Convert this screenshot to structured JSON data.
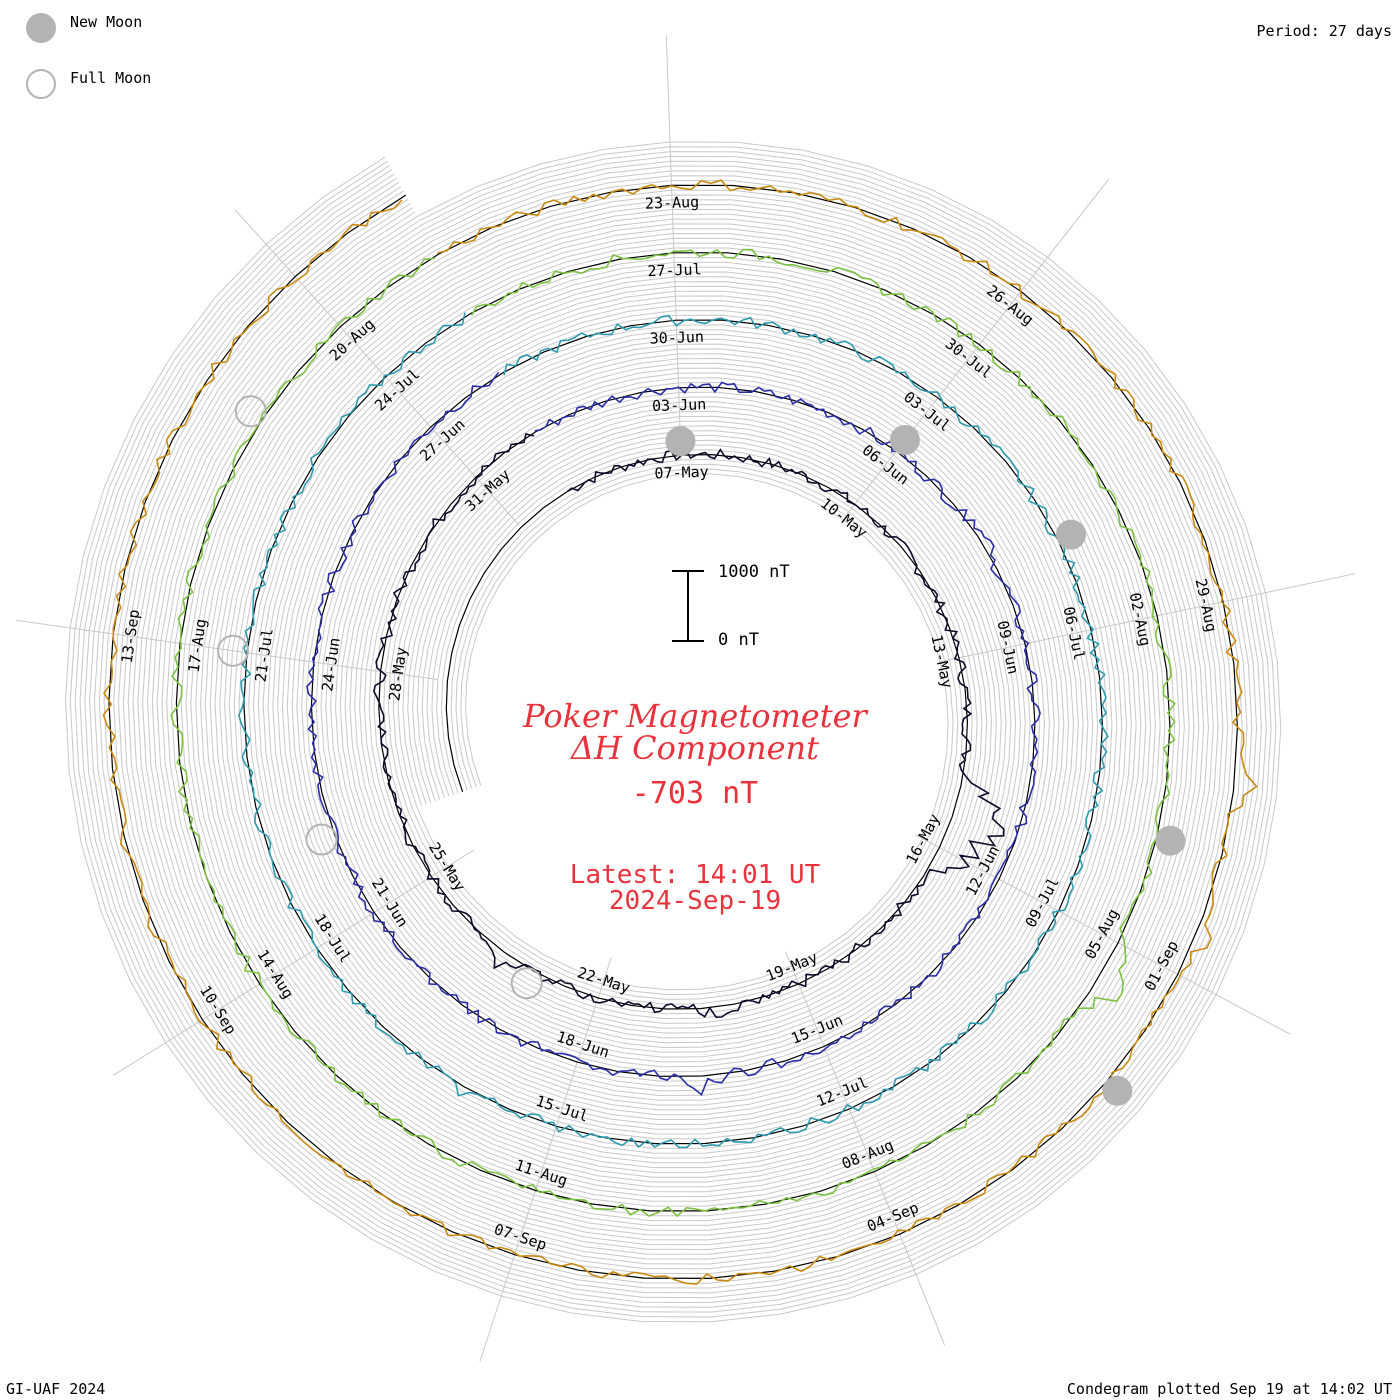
{
  "legend": {
    "new_moon_label": "New Moon",
    "full_moon_label": "Full Moon",
    "new_moon_color": "#b3b3b3",
    "full_moon_color": "#b3b3b3"
  },
  "period_label": "Period: 27 days",
  "footer": {
    "left": "GI-UAF 2024",
    "right": "Condegram plotted Sep 19 at 14:02 UT"
  },
  "title": {
    "line1": "Poker Magnetometer",
    "line2": "ΔH Component",
    "current_value": "-703 nT",
    "latest_time": "Latest: 14:01 UT",
    "latest_date": "2024-Sep-19",
    "color": "#e8323c"
  },
  "scale_bar": {
    "top_label": "1000 nT",
    "bottom_label": "0 nT"
  },
  "chart_data": {
    "type": "line",
    "subtype": "polar-spiral condegram",
    "period_days": 27,
    "units": "nT",
    "date_labels": [
      "07-May",
      "10-May",
      "13-May",
      "16-May",
      "19-May",
      "22-May",
      "25-May",
      "28-May",
      "31-May",
      "03-Jun",
      "06-Jun",
      "09-Jun",
      "12-Jun",
      "15-Jun",
      "18-Jun",
      "21-Jun",
      "24-Jun",
      "27-Jun",
      "30-Jun",
      "03-Jul",
      "06-Jul",
      "09-Jul",
      "12-Jul",
      "15-Jul",
      "18-Jul",
      "21-Jul",
      "24-Jul",
      "27-Jul",
      "30-Jul",
      "02-Aug",
      "05-Aug",
      "08-Aug",
      "11-Aug",
      "14-Aug",
      "17-Aug",
      "20-Aug",
      "23-Aug",
      "26-Aug",
      "29-Aug",
      "01-Sep",
      "04-Sep",
      "07-Sep",
      "10-Sep",
      "13-Sep"
    ],
    "new_moon_dates": [
      "07-May",
      "06-Jun",
      "05-Jul",
      "04-Aug",
      "02-Sep"
    ],
    "full_moon_dates": [
      "23-May",
      "22-Jun",
      "21-Jul",
      "19-Aug",
      "18-Sep"
    ],
    "cycles": [
      {
        "start": "05-May",
        "color": "#0c0c2a",
        "events": [
          {
            "day": 10.2,
            "nT": 1000
          },
          {
            "day": 10.6,
            "nT": 900
          },
          {
            "day": 11.0,
            "nT": 600
          },
          {
            "day": 15.2,
            "nT": 300
          },
          {
            "day": 18.5,
            "nT": 250
          }
        ]
      },
      {
        "start": "01-Jun",
        "color": "#2b2ea6",
        "events": [
          {
            "day": 6.5,
            "nT": 200
          },
          {
            "day": 15.5,
            "nT": 250
          }
        ]
      },
      {
        "start": "28-Jun",
        "color": "#2e9ab0",
        "events": [
          {
            "day": 18.0,
            "nT": 150
          }
        ]
      },
      {
        "start": "25-Jul",
        "color": "#7cc242",
        "events": [
          {
            "day": 11.3,
            "nT": 550
          }
        ]
      },
      {
        "start": "21-Aug",
        "color": "#c98a12",
        "events": [
          {
            "day": 9.4,
            "nT": 300
          },
          {
            "day": 10.6,
            "nT": 250
          }
        ]
      },
      {
        "start": "17-Sep",
        "color": "#c01818",
        "events": []
      }
    ]
  }
}
